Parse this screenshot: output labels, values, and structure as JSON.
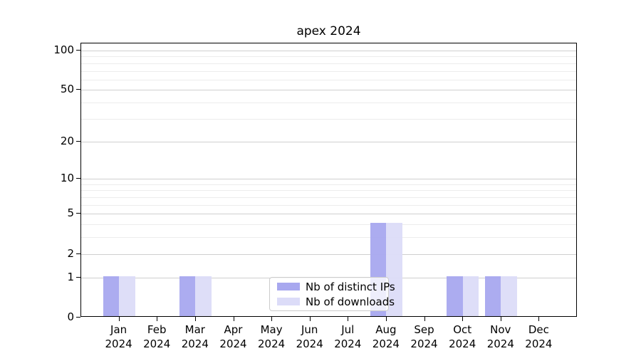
{
  "title": "apex 2024",
  "chart_data": {
    "type": "bar",
    "title": "apex 2024",
    "categories": [
      "Jan 2024",
      "Feb 2024",
      "Mar 2024",
      "Apr 2024",
      "May 2024",
      "Jun 2024",
      "Jul 2024",
      "Aug 2024",
      "Sep 2024",
      "Oct 2024",
      "Nov 2024",
      "Dec 2024"
    ],
    "series": [
      {
        "name": "Nb of distinct IPs",
        "color": "#a8a8ef",
        "values": [
          1,
          0,
          1,
          0,
          0,
          0,
          0,
          4,
          0,
          1,
          1,
          0
        ]
      },
      {
        "name": "Nb of downloads",
        "color": "#dcdcf8",
        "values": [
          1,
          0,
          1,
          0,
          0,
          0,
          0,
          4,
          0,
          1,
          1,
          0
        ]
      }
    ],
    "xlabel": "",
    "ylabel": "",
    "yscale": "log1p",
    "yticks": [
      0,
      1,
      2,
      5,
      10,
      20,
      50,
      100
    ],
    "ylim": [
      0,
      113
    ],
    "grid": true,
    "legend_position": "lower-center"
  },
  "colors": {
    "distinct_ips": "#a8a8ef",
    "downloads": "#dcdcf8",
    "grid_major": "#cfcfcf",
    "grid_minor": "#ececec",
    "spine": "#000000"
  }
}
